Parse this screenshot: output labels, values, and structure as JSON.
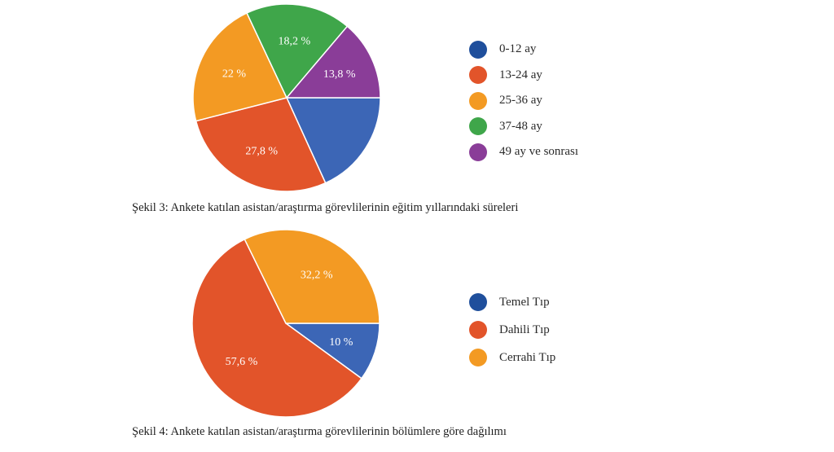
{
  "chart_data": [
    {
      "type": "pie",
      "title": "Şekil 3: Anketee katılan asistan/araştırma görevlilerinin eğitim yıllarındaki süreleri",
      "categories": [
        "0-12 ay",
        "13-24 ay",
        "25-36 ay",
        "37-48 ay",
        "49 ay ve sonrası"
      ],
      "values": [
        18.2,
        27.8,
        22,
        18.2,
        13.8
      ],
      "value_labels": [
        "",
        "27,8 %",
        "22 %",
        "18,2 %",
        "13,8 %"
      ],
      "colors": [
        "#3c66b6",
        "#e2542a",
        "#f39a23",
        "#3fa64a",
        "#8a3d98"
      ],
      "legend_colors": [
        "#1f4f9c",
        "#e2542a",
        "#f39a23",
        "#3fa64a",
        "#8a3d98"
      ],
      "legend": "right"
    },
    {
      "type": "pie",
      "title": "Şekil 4: Ankete katılan asistan/araştırma görevlilerinin bölümlere göre dağılımı",
      "categories": [
        "Temel Tıp",
        "Dahili Tıp",
        "Cerrahi Tıp"
      ],
      "values": [
        10,
        57.6,
        32.2
      ],
      "value_labels": [
        "10 %",
        "57,6 %",
        "32,2 %"
      ],
      "colors": [
        "#3c66b6",
        "#e2542a",
        "#f39a23"
      ],
      "legend_colors": [
        "#1f4f9c",
        "#e2542a",
        "#f39a23"
      ],
      "legend": "right"
    }
  ]
}
